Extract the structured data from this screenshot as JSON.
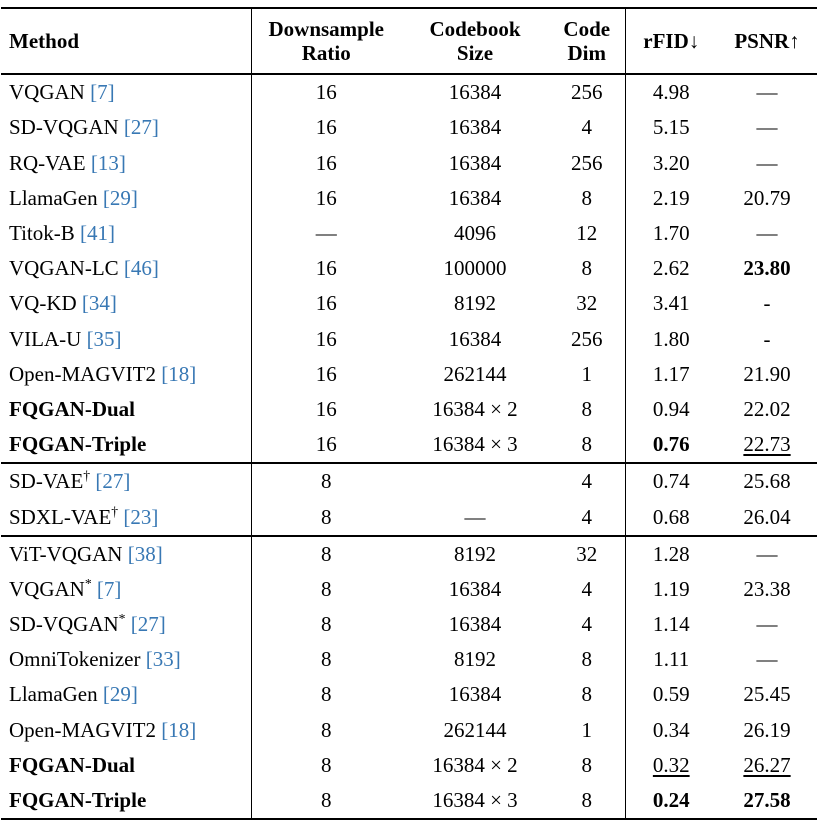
{
  "table": {
    "citation_color": "#3878b4",
    "header": {
      "method": "Method",
      "downsample": [
        "Downsample",
        "Ratio"
      ],
      "codebook": [
        "Codebook",
        "Size"
      ],
      "code_dim": [
        "Code",
        "Dim"
      ],
      "rfid": "rFID↓",
      "psnr": "PSNR↑"
    },
    "groups": [
      {
        "rows": [
          {
            "name": "VQGAN",
            "sup": "",
            "cite": "[7]",
            "bold": false,
            "ds": "16",
            "cb": "16384",
            "dim": "256",
            "rfid": "4.98",
            "rs": "",
            "psnr": "—",
            "ps": ""
          },
          {
            "name": "SD-VQGAN",
            "sup": "",
            "cite": "[27]",
            "bold": false,
            "ds": "16",
            "cb": "16384",
            "dim": "4",
            "rfid": "5.15",
            "rs": "",
            "psnr": "—",
            "ps": ""
          },
          {
            "name": "RQ-VAE",
            "sup": "",
            "cite": "[13]",
            "bold": false,
            "ds": "16",
            "cb": "16384",
            "dim": "256",
            "rfid": "3.20",
            "rs": "",
            "psnr": "—",
            "ps": ""
          },
          {
            "name": "LlamaGen",
            "sup": "",
            "cite": "[29]",
            "bold": false,
            "ds": "16",
            "cb": "16384",
            "dim": "8",
            "rfid": "2.19",
            "rs": "",
            "psnr": "20.79",
            "ps": ""
          },
          {
            "name": "Titok-B",
            "sup": "",
            "cite": "[41]",
            "bold": false,
            "ds": "—",
            "cb": "4096",
            "dim": "12",
            "rfid": "1.70",
            "rs": "",
            "psnr": "—",
            "ps": ""
          },
          {
            "name": "VQGAN-LC",
            "sup": "",
            "cite": "[46]",
            "bold": false,
            "ds": "16",
            "cb": "100000",
            "dim": "8",
            "rfid": "2.62",
            "rs": "",
            "psnr": "23.80",
            "ps": "bold"
          },
          {
            "name": "VQ-KD",
            "sup": "",
            "cite": "[34]",
            "bold": false,
            "ds": "16",
            "cb": "8192",
            "dim": "32",
            "rfid": "3.41",
            "rs": "",
            "psnr": "-",
            "ps": ""
          },
          {
            "name": "VILA-U",
            "sup": "",
            "cite": "[35]",
            "bold": false,
            "ds": "16",
            "cb": "16384",
            "dim": "256",
            "rfid": "1.80",
            "rs": "",
            "psnr": "-",
            "ps": ""
          },
          {
            "name": "Open-MAGVIT2",
            "sup": "",
            "cite": "[18]",
            "bold": false,
            "ds": "16",
            "cb": "262144",
            "dim": "1",
            "rfid": "1.17",
            "rs": "",
            "psnr": "21.90",
            "ps": ""
          },
          {
            "name": "FQGAN-Dual",
            "sup": "",
            "cite": "",
            "bold": true,
            "ds": "16",
            "cb": "16384 × 2",
            "dim": "8",
            "rfid": "0.94",
            "rs": "",
            "psnr": "22.02",
            "ps": ""
          },
          {
            "name": "FQGAN-Triple",
            "sup": "",
            "cite": "",
            "bold": true,
            "ds": "16",
            "cb": "16384 × 3",
            "dim": "8",
            "rfid": "0.76",
            "rs": "bold",
            "psnr": "22.73",
            "ps": "underline"
          }
        ]
      },
      {
        "rows": [
          {
            "name": "SD-VAE",
            "sup": "†",
            "cite": "[27]",
            "bold": false,
            "ds": "8",
            "cb": "",
            "dim": "4",
            "rfid": "0.74",
            "rs": "",
            "psnr": "25.68",
            "ps": ""
          },
          {
            "name": "SDXL-VAE",
            "sup": "†",
            "cite": "[23]",
            "bold": false,
            "ds": "8",
            "cb": "—",
            "dim": "4",
            "rfid": "0.68",
            "rs": "",
            "psnr": "26.04",
            "ps": ""
          }
        ]
      },
      {
        "rows": [
          {
            "name": "ViT-VQGAN",
            "sup": "",
            "cite": "[38]",
            "bold": false,
            "ds": "8",
            "cb": "8192",
            "dim": "32",
            "rfid": "1.28",
            "rs": "",
            "psnr": "—",
            "ps": ""
          },
          {
            "name": "VQGAN",
            "sup": "*",
            "cite": "[7]",
            "bold": false,
            "ds": "8",
            "cb": "16384",
            "dim": "4",
            "rfid": "1.19",
            "rs": "",
            "psnr": "23.38",
            "ps": ""
          },
          {
            "name": "SD-VQGAN",
            "sup": "*",
            "cite": "[27]",
            "bold": false,
            "ds": "8",
            "cb": "16384",
            "dim": "4",
            "rfid": "1.14",
            "rs": "",
            "psnr": "—",
            "ps": ""
          },
          {
            "name": "OmniTokenizer",
            "sup": "",
            "cite": "[33]",
            "bold": false,
            "ds": "8",
            "cb": "8192",
            "dim": "8",
            "rfid": "1.11",
            "rs": "",
            "psnr": "—",
            "ps": ""
          },
          {
            "name": "LlamaGen",
            "sup": "",
            "cite": "[29]",
            "bold": false,
            "ds": "8",
            "cb": "16384",
            "dim": "8",
            "rfid": "0.59",
            "rs": "",
            "psnr": "25.45",
            "ps": ""
          },
          {
            "name": "Open-MAGVIT2",
            "sup": "",
            "cite": "[18]",
            "bold": false,
            "ds": "8",
            "cb": "262144",
            "dim": "1",
            "rfid": "0.34",
            "rs": "",
            "psnr": "26.19",
            "ps": ""
          },
          {
            "name": "FQGAN-Dual",
            "sup": "",
            "cite": "",
            "bold": true,
            "ds": "8",
            "cb": "16384 × 2",
            "dim": "8",
            "rfid": "0.32",
            "rs": "underline",
            "psnr": "26.27",
            "ps": "underline"
          },
          {
            "name": "FQGAN-Triple",
            "sup": "",
            "cite": "",
            "bold": true,
            "ds": "8",
            "cb": "16384 × 3",
            "dim": "8",
            "rfid": "0.24",
            "rs": "bold",
            "psnr": "27.58",
            "ps": "bold"
          }
        ]
      }
    ]
  }
}
